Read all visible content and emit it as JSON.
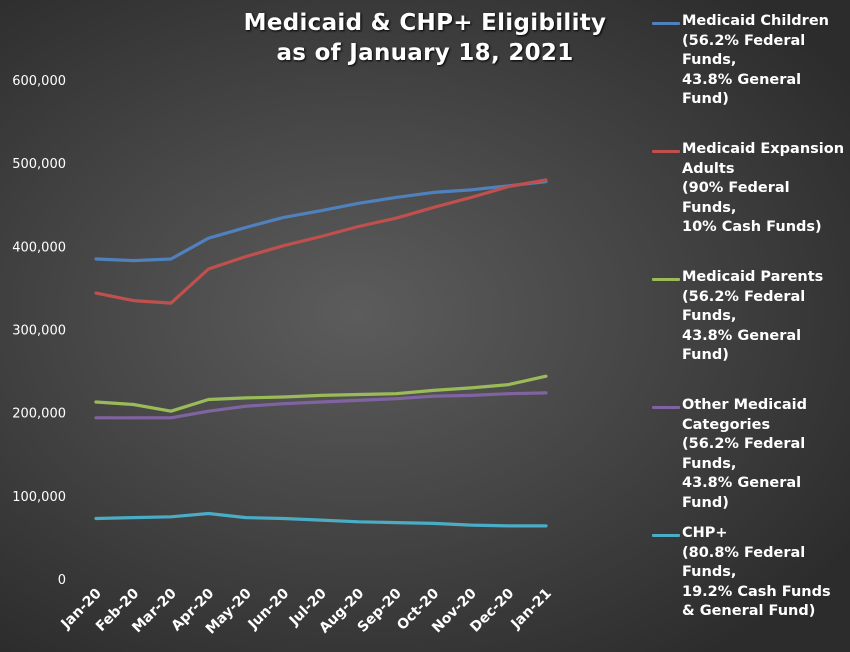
{
  "chart_data": {
    "type": "line",
    "title_lines": [
      "Medicaid & CHP+ Eligibility",
      "as of January 18, 2021"
    ],
    "categories": [
      "Jan-20",
      "Feb-20",
      "Mar-20",
      "Apr-20",
      "May-20",
      "Jun-20",
      "Jul-20",
      "Aug-20",
      "Sep-20",
      "Oct-20",
      "Nov-20",
      "Dec-20",
      "Jan-21"
    ],
    "y_ticks": [
      "0",
      "100,000",
      "200,000",
      "300,000",
      "400,000",
      "500,000",
      "600,000"
    ],
    "ylim": [
      0,
      600000
    ],
    "grid": false,
    "legend_position": "right",
    "series": [
      {
        "name": "Medicaid Children\n(56.2% Federal\nFunds,\n43.8% General\nFund)",
        "color": "#4f81bd",
        "values": [
          386000,
          384000,
          386000,
          411000,
          424000,
          436000,
          444000,
          453000,
          460000,
          466000,
          469000,
          474000,
          479000
        ]
      },
      {
        "name": "Medicaid Expansion\nAdults\n(90% Federal\nFunds,\n10% Cash Funds)",
        "color": "#c0504d",
        "values": [
          345000,
          336000,
          333000,
          374000,
          389000,
          402000,
          413000,
          425000,
          435000,
          448000,
          460000,
          473000,
          481000
        ]
      },
      {
        "name": "Medicaid Parents\n(56.2% Federal\nFunds,\n43.8% General\nFund)",
        "color": "#9bbb59",
        "values": [
          214000,
          211000,
          203000,
          217000,
          219000,
          220000,
          222000,
          223000,
          224000,
          228000,
          231000,
          235000,
          245000
        ]
      },
      {
        "name": "Other Medicaid\nCategories\n(56.2% Federal\nFunds,\n43.8% General\nFund)",
        "color": "#8064a2",
        "values": [
          195000,
          195000,
          195000,
          203000,
          209000,
          212000,
          214000,
          216000,
          218000,
          221000,
          222000,
          224000,
          225000
        ]
      },
      {
        "name": "CHP+\n(80.8% Federal\nFunds,\n19.2% Cash Funds\n& General Fund)",
        "color": "#4bacc6",
        "values": [
          74000,
          75000,
          76000,
          80000,
          75000,
          74000,
          72000,
          70000,
          69000,
          68000,
          66000,
          65000,
          65000
        ]
      }
    ]
  }
}
